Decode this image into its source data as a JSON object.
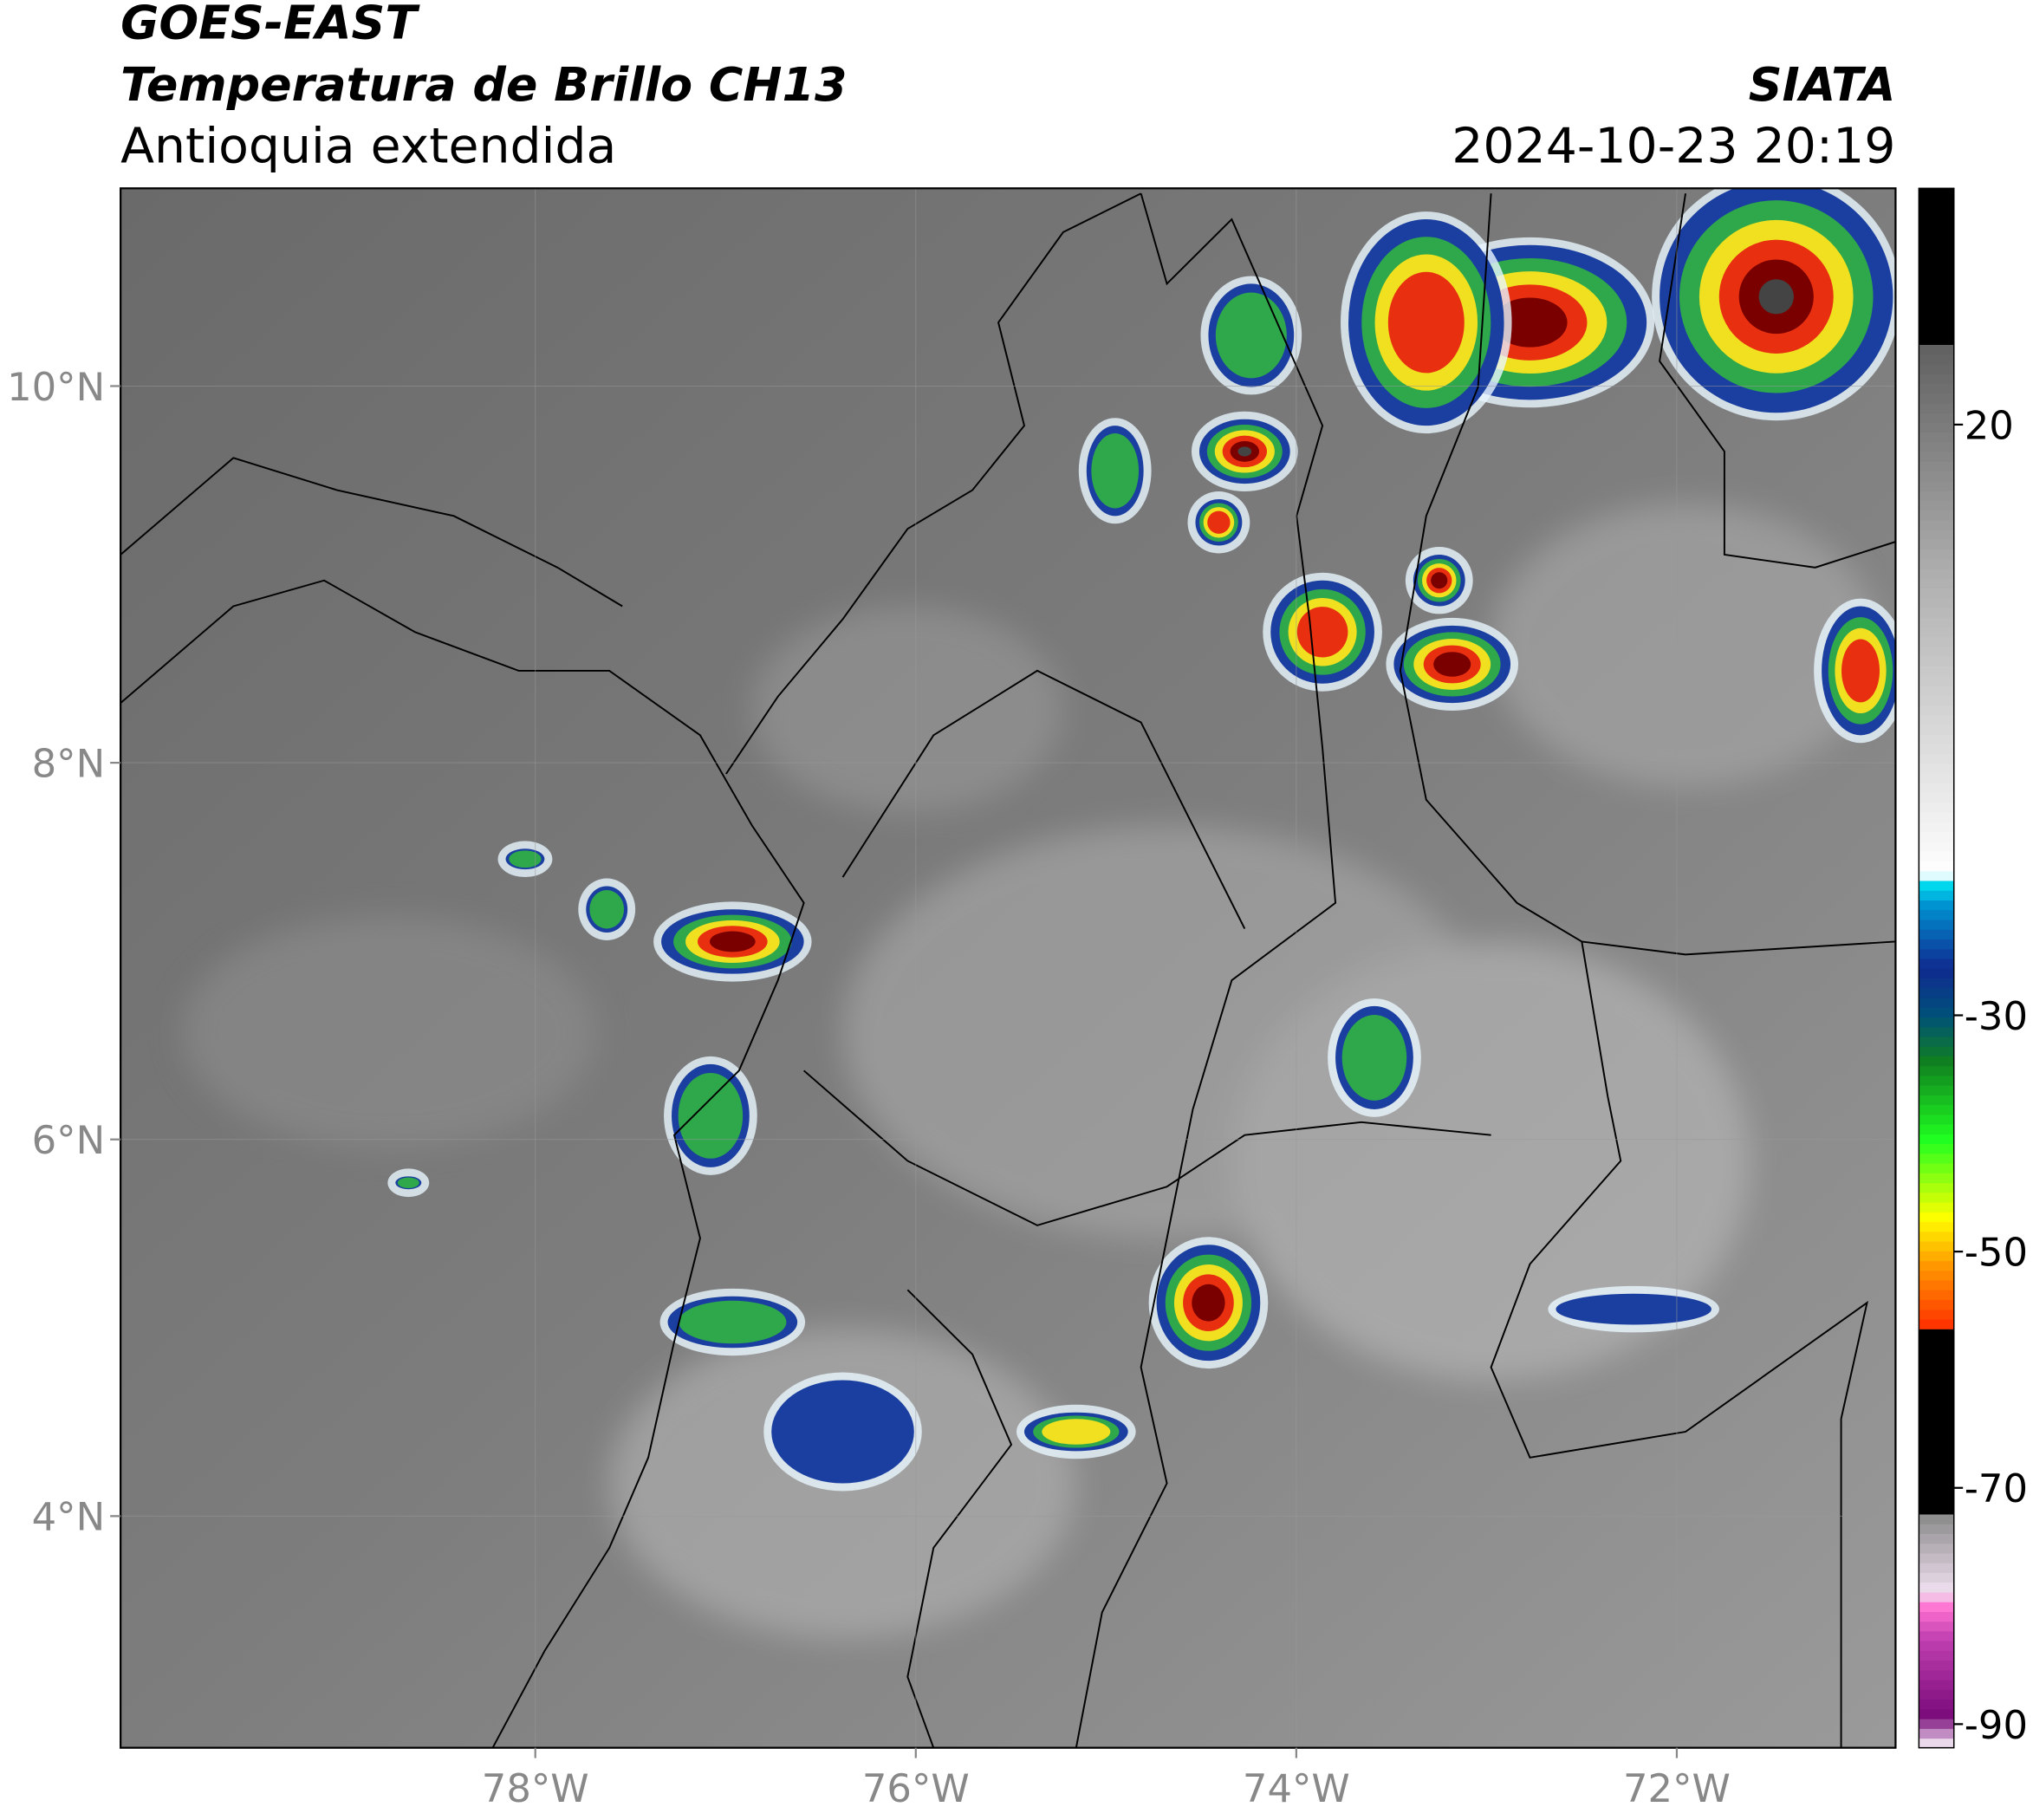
{
  "header": {
    "title": "GOES-EAST",
    "subtitle": "Temperatura de Brillo CH13",
    "region": "Antioquia extendida",
    "source": "SIATA",
    "datetime": "2024-10-23 20:19"
  },
  "chart_data": {
    "type": "map",
    "xlim": [
      -80.18,
      -70.85
    ],
    "ylim": [
      2.77,
      11.05
    ],
    "xticks": [
      {
        "value": -78,
        "label": "78°W"
      },
      {
        "value": -76,
        "label": "76°W"
      },
      {
        "value": -74,
        "label": "74°W"
      },
      {
        "value": -72,
        "label": "72°W"
      }
    ],
    "yticks": [
      {
        "value": 4,
        "label": "4°N"
      },
      {
        "value": 6,
        "label": "6°N"
      },
      {
        "value": 8,
        "label": "8°N"
      },
      {
        "value": 10,
        "label": "10°N"
      }
    ],
    "grid": true,
    "colorbar": {
      "lim": [
        -92,
        40
      ],
      "ticks": [
        -90,
        -70,
        -50,
        -30,
        20
      ]
    }
  }
}
